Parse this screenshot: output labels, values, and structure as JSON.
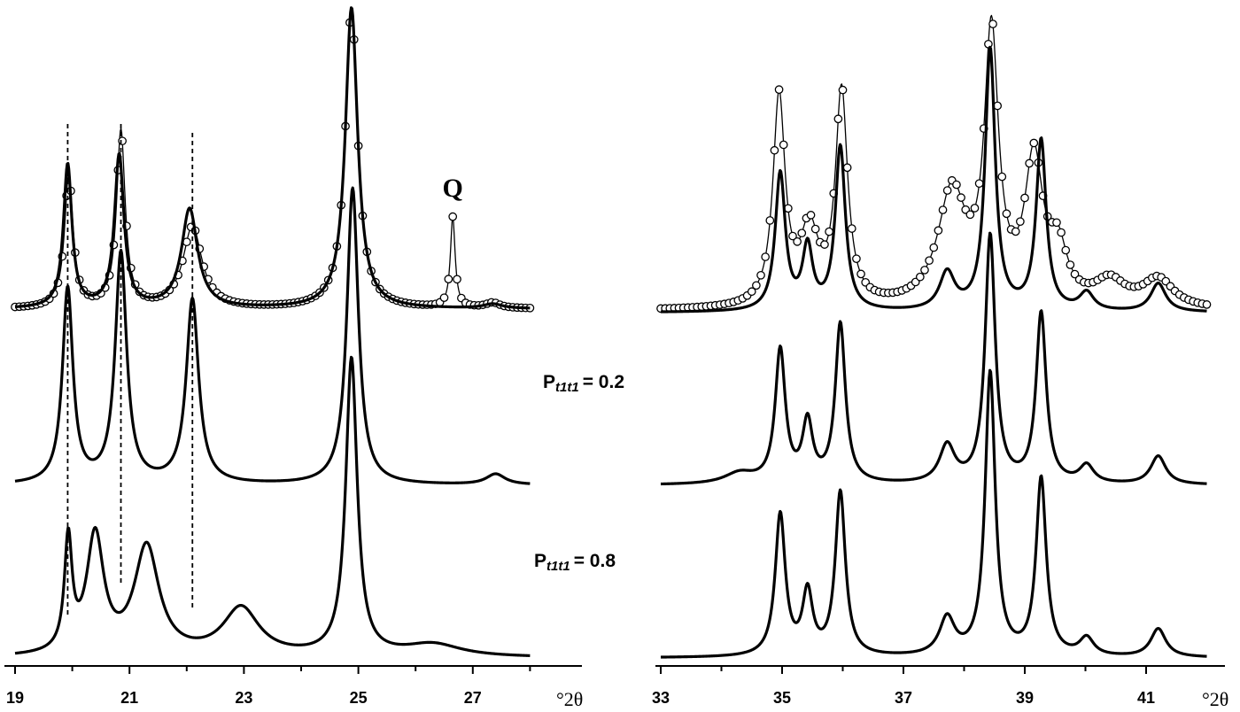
{
  "chart_data": {
    "type": "line",
    "xlabel": "°2θ",
    "y_scale": "intensity (arbitrary, curves offset vertically)",
    "panels": [
      {
        "id": "left",
        "xlim": [
          18.8,
          28.2
        ],
        "ticks": [
          19,
          21,
          23,
          25,
          27
        ],
        "tick_labels": [
          "19",
          "21",
          "23",
          "25",
          "27"
        ],
        "unit_label": "°2θ",
        "annotations": [
          {
            "text": "Q",
            "x": 26.65
          }
        ],
        "dashed_guides_x": [
          19.92,
          20.85,
          22.1
        ],
        "series": [
          {
            "kind": "experimental-circles",
            "x_start": 19.0,
            "x_end": 28.0,
            "step": 0.075,
            "baseline": 6,
            "peaks": [
              [
                19.94,
                150,
                0.09
              ],
              [
                20.85,
                200,
                0.09
              ],
              [
                22.1,
                92,
                0.2
              ],
              [
                24.88,
                340,
                0.13
              ],
              [
                26.65,
                102,
                0.05
              ],
              [
                27.35,
                6,
                0.15
              ]
            ]
          },
          {
            "kind": "calculated-fit",
            "baseline": 6,
            "peaks": [
              [
                19.92,
                162,
                0.09
              ],
              [
                20.82,
                172,
                0.1
              ],
              [
                22.05,
                112,
                0.17
              ],
              [
                24.88,
                340,
                0.13
              ],
              [
                27.35,
                5,
                0.2
              ]
            ]
          },
          {
            "kind": "calculated",
            "label_main": "P",
            "label_sub": "t1t1",
            "label_value": "= 0.2",
            "baseline": 2,
            "peaks": [
              [
                19.92,
                220,
                0.11
              ],
              [
                20.85,
                260,
                0.12
              ],
              [
                22.1,
                208,
                0.13
              ],
              [
                24.9,
                335,
                0.12
              ],
              [
                27.4,
                12,
                0.2
              ]
            ]
          },
          {
            "kind": "calculated",
            "label_main": "P",
            "label_sub": "t1t1",
            "label_value": "= 0.8",
            "baseline": 2,
            "peaks": [
              [
                19.93,
                125,
                0.08
              ],
              [
                20.4,
                133,
                0.18
              ],
              [
                21.3,
                122,
                0.26
              ],
              [
                22.95,
                54,
                0.38
              ],
              [
                24.88,
                335,
                0.12
              ],
              [
                26.3,
                14,
                0.6
              ]
            ]
          }
        ]
      },
      {
        "id": "right",
        "xlim": [
          33.0,
          42.0
        ],
        "ticks": [
          33,
          35,
          37,
          39,
          41
        ],
        "tick_labels": [
          "33",
          "35",
          "37",
          "39",
          "41"
        ],
        "unit_label": "°2θ",
        "annotations": [],
        "dashed_guides_x": [],
        "series": [
          {
            "kind": "experimental-circles",
            "x_start": 33.0,
            "x_end": 42.0,
            "step": 0.075,
            "baseline": 4,
            "peaks": [
              [
                34.95,
                235,
                0.12
              ],
              [
                35.45,
                82,
                0.18
              ],
              [
                35.98,
                240,
                0.12
              ],
              [
                37.8,
                128,
                0.28
              ],
              [
                38.45,
                300,
                0.14
              ],
              [
                39.15,
                160,
                0.18
              ],
              [
                39.55,
                58,
                0.18
              ],
              [
                40.4,
                28,
                0.3
              ],
              [
                41.2,
                32,
                0.3
              ]
            ]
          },
          {
            "kind": "calculated-fit",
            "baseline": 2,
            "peaks": [
              [
                34.97,
                155,
                0.1
              ],
              [
                35.42,
                70,
                0.1
              ],
              [
                35.96,
                185,
                0.1
              ],
              [
                37.72,
                42,
                0.15
              ],
              [
                38.43,
                295,
                0.1
              ],
              [
                39.27,
                192,
                0.1
              ],
              [
                40.02,
                20,
                0.14
              ],
              [
                41.2,
                32,
                0.15
              ]
            ]
          },
          {
            "kind": "calculated",
            "label_main": "",
            "label_sub": "",
            "label_value": "",
            "baseline": 2,
            "peaks": [
              [
                34.3,
                12,
                0.3
              ],
              [
                34.97,
                150,
                0.1
              ],
              [
                35.42,
                67,
                0.1
              ],
              [
                35.96,
                180,
                0.1
              ],
              [
                37.72,
                42,
                0.15
              ],
              [
                38.43,
                280,
                0.1
              ],
              [
                39.27,
                192,
                0.1
              ],
              [
                40.02,
                20,
                0.14
              ],
              [
                41.2,
                32,
                0.15
              ]
            ]
          },
          {
            "kind": "calculated",
            "label_main": "",
            "label_sub": "",
            "label_value": "",
            "baseline": 2,
            "peaks": [
              [
                34.97,
                160,
                0.1
              ],
              [
                35.42,
                70,
                0.1
              ],
              [
                35.96,
                185,
                0.1
              ],
              [
                37.72,
                42,
                0.15
              ],
              [
                38.43,
                320,
                0.1
              ],
              [
                39.27,
                200,
                0.1
              ],
              [
                40.02,
                20,
                0.14
              ],
              [
                41.2,
                32,
                0.15
              ]
            ]
          }
        ]
      }
    ]
  }
}
